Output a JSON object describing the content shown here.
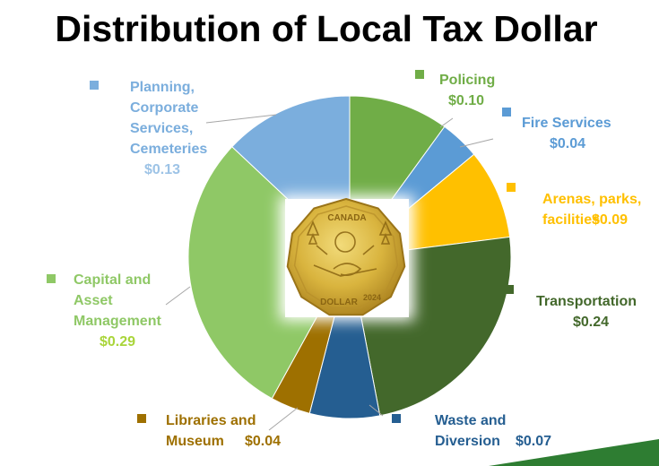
{
  "chart_data": {
    "type": "pie",
    "title": "Distribution of Local Tax Dollar",
    "slices": [
      {
        "label": [
          "Policing"
        ],
        "value_label": "$0.10",
        "value": 0.1,
        "color": "#70AD47",
        "label_color": "#70AD47",
        "value_color": "#70AD47"
      },
      {
        "label": [
          "Fire Services"
        ],
        "value_label": "$0.04",
        "value": 0.04,
        "color": "#5B9BD5",
        "label_color": "#5B9BD5",
        "value_color": "#5B9BD5"
      },
      {
        "label": [
          "Arenas, parks,",
          "facilities"
        ],
        "value_label": "$0.09",
        "value": 0.09,
        "color": "#FFC000",
        "label_color": "#FFC000",
        "value_color": "#FFC000"
      },
      {
        "label": [
          "Transportation"
        ],
        "value_label": "$0.24",
        "value": 0.24,
        "color": "#43682B",
        "label_color": "#43682B",
        "value_color": "#43682B"
      },
      {
        "label": [
          "Waste and",
          "Diversion"
        ],
        "value_label": "$0.07",
        "value": 0.07,
        "color": "#255E91",
        "label_color": "#255E91",
        "value_color": "#255E91"
      },
      {
        "label": [
          "Libraries and",
          "Museum"
        ],
        "value_label": "$0.04",
        "value": 0.04,
        "color": "#9E7000",
        "label_color": "#9E7000",
        "value_color": "#9E7000"
      },
      {
        "label": [
          "Capital and",
          "Asset",
          "Management"
        ],
        "value_label": "$0.29",
        "value": 0.29,
        "color": "#8FC866",
        "label_color": "#8FC866",
        "value_color": "#A9D53A"
      },
      {
        "label": [
          "Planning,",
          "Corporate",
          "Services,",
          "Cemeteries"
        ],
        "value_label": "$0.13",
        "value": 0.13,
        "color": "#7BAEDD",
        "label_color": "#7BAEDD",
        "value_color": "#9DC3E6"
      }
    ]
  },
  "coin": {
    "top_text": "CANADA",
    "bottom_text": "DOLLAR",
    "year": "2024"
  }
}
